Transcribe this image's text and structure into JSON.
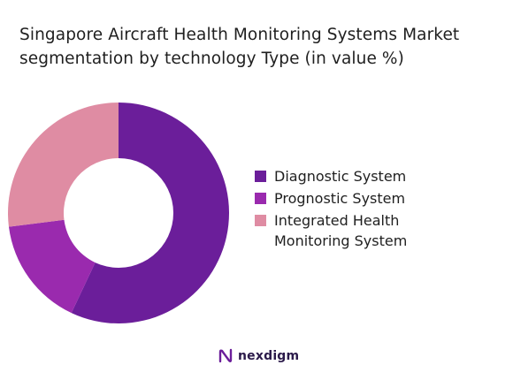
{
  "title": {
    "line1": "Singapore Aircraft Health Monitoring Systems Market",
    "line2": "segmentation by technology Type (in value %)"
  },
  "chart_data": {
    "type": "donut",
    "title": "Singapore Aircraft Health Monitoring Systems Market segmentation by technology Type (in value %)",
    "categories": [
      "Diagnostic System",
      "Prognostic System",
      "Integrated Health Monitoring System"
    ],
    "values": [
      57,
      16,
      27
    ],
    "colors": [
      "#6b1e9a",
      "#9a2aae",
      "#df8ca3"
    ],
    "legend_placement": "right"
  },
  "legend": {
    "items": [
      {
        "label": "Diagnostic System",
        "color": "#6b1e9a"
      },
      {
        "label": "Prognostic System",
        "color": "#9a2aae"
      },
      {
        "label_line1": "Integrated Health",
        "label_line2": "Monitoring System",
        "color": "#df8ca3"
      }
    ]
  },
  "logo": {
    "text": "nexdigm",
    "icon": "nexdigm-logo-icon",
    "color": "#2b1a4a"
  }
}
